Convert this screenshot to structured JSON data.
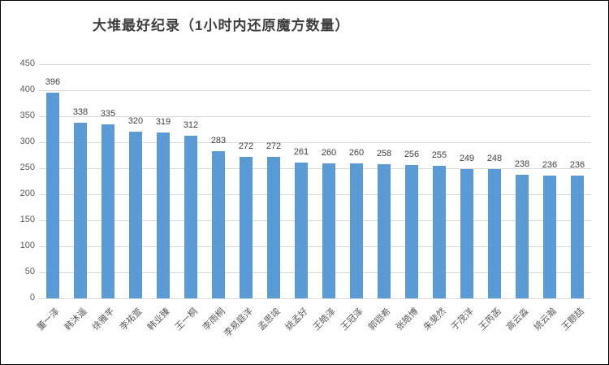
{
  "window": {
    "background": "#ffffff",
    "border_color": "#000000"
  },
  "chart_data": {
    "type": "bar",
    "title": "大堆最好纪录（1小时内还原魔方数量）",
    "categories": [
      "董一泽",
      "韩沐遥",
      "徐雅芊",
      "李祐萱",
      "韩业臻",
      "王一桐",
      "李雨桐",
      "李易庭洋",
      "孟思竣",
      "姚孟好",
      "王皓泽",
      "王冠泽",
      "郭铠希",
      "张皓博",
      "朱斐然",
      "于茂洋",
      "王芮菡",
      "高云淼",
      "姚云瀚",
      "王颢喆"
    ],
    "values": [
      396,
      338,
      335,
      320,
      319,
      312,
      283,
      272,
      272,
      261,
      260,
      260,
      258,
      256,
      255,
      249,
      248,
      238,
      236,
      236
    ],
    "xlabel": "",
    "ylabel": "",
    "ylim": [
      0,
      450
    ],
    "yticks": [
      0,
      50,
      100,
      150,
      200,
      250,
      300,
      350,
      400,
      450
    ],
    "grid": true,
    "legend_position": "none",
    "data_labels": true,
    "x_label_rotation": -45,
    "bar_color": "#5b9bd5",
    "gridline_color": "#d9d9d9",
    "axis_label_color": "#595959",
    "data_label_color": "#404040",
    "title_color": "#3f3f3f"
  }
}
